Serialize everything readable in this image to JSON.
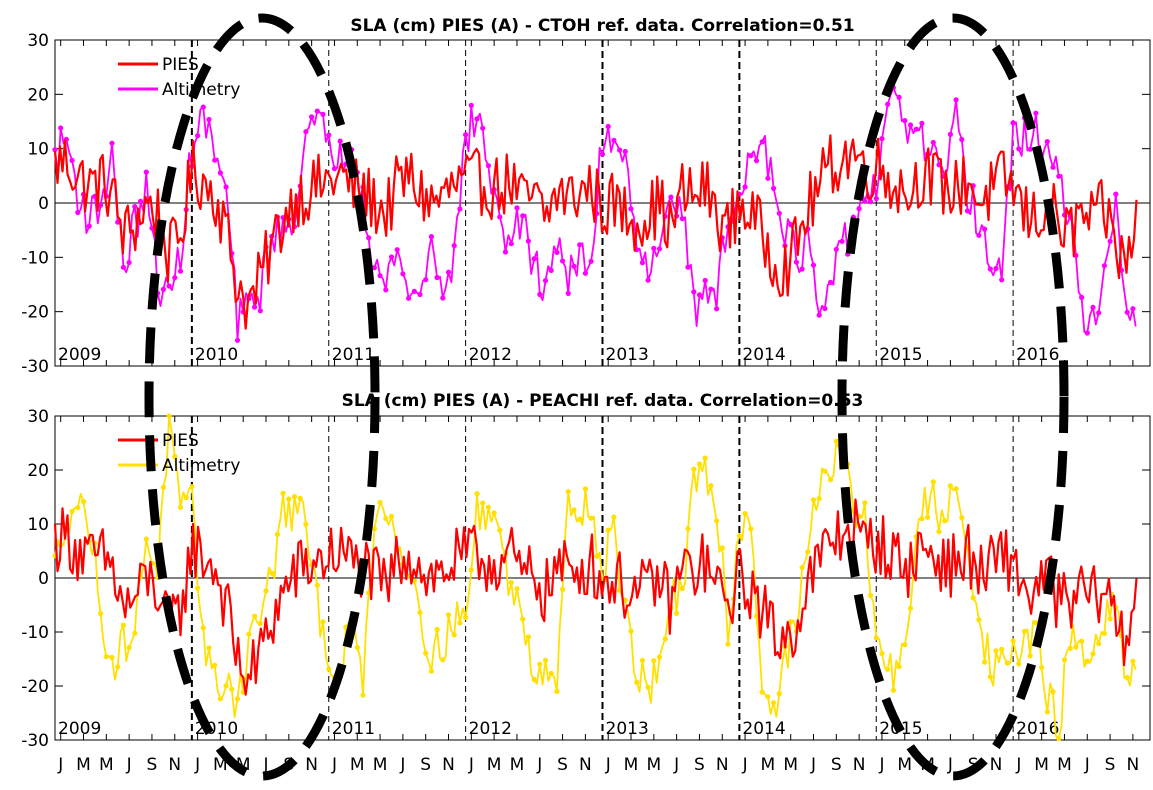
{
  "chart_data": [
    {
      "type": "line",
      "title": "SLA (cm) PIES (A) - CTOH ref. data. Correlation=0.51",
      "xlabel": "",
      "ylabel": "",
      "ylim": [
        -30,
        30
      ],
      "yticks": [
        -30,
        -20,
        -10,
        0,
        10,
        20,
        30
      ],
      "ytick_labels": [
        "-30",
        "-20",
        "-10",
        "0",
        "10",
        "20",
        "30"
      ],
      "xlim": [
        "2009-01-01",
        "2016-12-31"
      ],
      "year_labels": [
        "2009",
        "2010",
        "2011",
        "2012",
        "2013",
        "2014",
        "2015",
        "2016"
      ],
      "legend": {
        "placement": "top-left",
        "entries": [
          "PIES",
          "Altimetry"
        ]
      },
      "series": [
        {
          "name": "PIES",
          "color": "#ff0000",
          "monthly_samples": [
            7,
            8,
            5,
            3,
            4,
            2,
            -6,
            -4,
            0,
            -2,
            -10,
            -6,
            6,
            4,
            2,
            -5,
            -15,
            -19,
            -14,
            -8,
            -3,
            1,
            2,
            3,
            4,
            5,
            3,
            2,
            0,
            -2,
            3,
            5,
            2,
            0,
            1,
            3,
            4,
            4,
            3,
            3,
            4,
            0,
            1,
            -3,
            2,
            1,
            2,
            3,
            -1,
            0,
            -2,
            -3,
            -2,
            0,
            -5,
            2,
            1,
            3,
            -2,
            -5,
            0,
            -2,
            -6,
            -10,
            -12,
            -8,
            -1,
            3,
            7,
            8,
            10,
            6,
            7,
            5,
            3,
            2,
            6,
            4,
            3,
            2,
            5,
            0,
            2,
            4,
            3,
            -2,
            -3,
            0,
            -4,
            -6,
            -2,
            -4,
            -1,
            -8,
            -12,
            2
          ]
        },
        {
          "name": "Altimetry",
          "color": "#ff00ff",
          "monthly_samples": [
            8,
            12,
            2,
            -3,
            0,
            9,
            -12,
            -4,
            2,
            -14,
            -18,
            -9,
            10,
            16,
            9,
            2,
            -22,
            -19,
            -16,
            -6,
            -6,
            -1,
            12,
            14,
            12,
            8,
            12,
            2,
            -11,
            -16,
            -7,
            -18,
            -16,
            -8,
            -15,
            -10,
            12,
            16,
            8,
            -6,
            -5,
            -4,
            -12,
            -15,
            -6,
            -14,
            -11,
            -11,
            12,
            13,
            8,
            -5,
            -12,
            -11,
            4,
            -1,
            -20,
            -17,
            -16,
            -4,
            0,
            10,
            13,
            4,
            -4,
            -10,
            -8,
            -20,
            -18,
            -7,
            -4,
            2,
            3,
            15,
            21,
            11,
            12,
            8,
            3,
            15,
            2,
            -3,
            -12,
            -12,
            11,
            12,
            13,
            10,
            4,
            -4,
            -19,
            -23,
            -11,
            -2,
            -23,
            -18
          ]
        }
      ]
    },
    {
      "type": "line",
      "title": "SLA (cm) PIES (A) - PEACHI ref. data. Correlation=0.53",
      "xlabel": "",
      "ylabel": "",
      "ylim": [
        -30,
        30
      ],
      "yticks": [
        -30,
        -20,
        -10,
        0,
        10,
        20,
        30
      ],
      "ytick_labels": [
        "-30",
        "-20",
        "-10",
        "0",
        "10",
        "20",
        "30"
      ],
      "xlim": [
        "2009-01-01",
        "2016-12-31"
      ],
      "year_labels": [
        "2009",
        "2010",
        "2011",
        "2012",
        "2013",
        "2014",
        "2015",
        "2016"
      ],
      "month_tick_labels": [
        "J",
        "M",
        "M",
        "J",
        "S",
        "N",
        "J",
        "M",
        "M",
        "J",
        "S",
        "N",
        "J",
        "M",
        "M",
        "J",
        "S",
        "N",
        "J",
        "M",
        "M",
        "J",
        "S",
        "N",
        "J",
        "M",
        "M",
        "J",
        "S",
        "N",
        "J",
        "M",
        "M",
        "J",
        "S",
        "N",
        "J",
        "M",
        "M",
        "J",
        "S",
        "N",
        "J",
        "M",
        "M",
        "J",
        "S",
        "N"
      ],
      "legend": {
        "placement": "top-left",
        "entries": [
          "PIES",
          "Altimetry"
        ]
      },
      "series": [
        {
          "name": "PIES",
          "color": "#ff0000",
          "monthly_samples": [
            7,
            8,
            5,
            3,
            4,
            2,
            -6,
            -4,
            0,
            -2,
            -10,
            -6,
            6,
            4,
            2,
            -5,
            -15,
            -19,
            -14,
            -8,
            -3,
            1,
            2,
            3,
            4,
            5,
            3,
            2,
            0,
            -2,
            3,
            5,
            2,
            0,
            1,
            3,
            4,
            4,
            3,
            3,
            4,
            0,
            1,
            -3,
            2,
            1,
            2,
            3,
            -1,
            0,
            -2,
            -3,
            -2,
            0,
            -5,
            2,
            1,
            3,
            -2,
            -5,
            0,
            -2,
            -6,
            -10,
            -12,
            -8,
            -1,
            3,
            7,
            8,
            10,
            6,
            7,
            5,
            3,
            2,
            6,
            4,
            3,
            2,
            5,
            0,
            2,
            4,
            3,
            -2,
            -3,
            0,
            -4,
            -6,
            -2,
            -4,
            -1,
            -8,
            -12,
            2
          ]
        },
        {
          "name": "Altimetry",
          "color": "#ffe000",
          "monthly_samples": [
            2,
            12,
            14,
            10,
            -5,
            -17,
            -12,
            -10,
            8,
            2,
            29,
            12,
            13,
            -10,
            -20,
            -19,
            -23,
            -12,
            -6,
            0,
            13,
            12,
            10,
            -5,
            -14,
            -18,
            -8,
            -20,
            12,
            13,
            8,
            2,
            -5,
            -15,
            -12,
            -7,
            -8,
            12,
            13,
            8,
            -3,
            -6,
            -18,
            -15,
            -19,
            13,
            14,
            13,
            0,
            10,
            -7,
            -17,
            -21,
            -15,
            -4,
            -4,
            17,
            19,
            14,
            -9,
            8,
            12,
            -20,
            -25,
            -15,
            -8,
            5,
            18,
            21,
            22,
            13,
            10,
            -10,
            -18,
            -16,
            -4,
            13,
            14,
            10,
            17,
            8,
            -8,
            -16,
            -17,
            -14,
            -12,
            -10,
            -22,
            -28,
            -10,
            -15,
            -14,
            -8,
            -6,
            -20,
            -18
          ]
        }
      ]
    }
  ]
}
